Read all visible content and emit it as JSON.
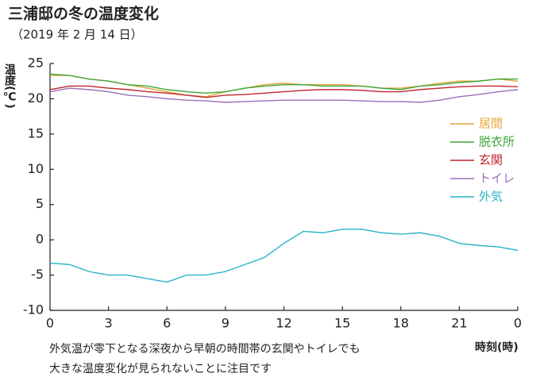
{
  "chart_data": {
    "type": "line",
    "title": "三浦邸の冬の温度変化",
    "subtitle": "（2019 年 2 月 14 日）",
    "y_label": "温度(℃)",
    "x_label": "時刻(時)",
    "annotation": [
      "外気温が零下となる深夜から早朝の時間帯の玄関やトイレでも",
      "大きな温度変化が見られないことに注目です"
    ],
    "x": [
      0,
      1,
      2,
      3,
      4,
      5,
      6,
      7,
      8,
      9,
      10,
      11,
      12,
      13,
      14,
      15,
      16,
      17,
      18,
      19,
      20,
      21,
      22,
      23,
      24
    ],
    "xlim": [
      0,
      24
    ],
    "xticks": [
      0,
      3,
      6,
      9,
      12,
      15,
      18,
      21,
      {
        "value": 24,
        "label": "0"
      }
    ],
    "ylim": [
      -10,
      25
    ],
    "yticks": [
      -10,
      -5,
      0,
      5,
      10,
      15,
      20,
      25
    ],
    "grid": false,
    "legend": "right",
    "series": [
      {
        "name": "居間",
        "color": "#e6a43a",
        "values": [
          23.3,
          23.3,
          22.8,
          22.5,
          22,
          21.5,
          21,
          20.5,
          20.3,
          21,
          21.5,
          22,
          22.2,
          22,
          22,
          22,
          21.8,
          21.5,
          21.5,
          21.8,
          22.2,
          22.5,
          22.5,
          22.8,
          22.5
        ]
      },
      {
        "name": "脱衣所",
        "color": "#3ea63a",
        "values": [
          23.5,
          23.3,
          22.8,
          22.5,
          22,
          21.8,
          21.3,
          21,
          20.8,
          21,
          21.5,
          21.8,
          22,
          22,
          21.8,
          21.8,
          21.8,
          21.5,
          21.3,
          21.8,
          22,
          22.3,
          22.5,
          22.8,
          22.8
        ]
      },
      {
        "name": "玄関",
        "color": "#c0262d",
        "values": [
          21.3,
          21.8,
          21.8,
          21.5,
          21.3,
          21,
          20.8,
          20.5,
          20.2,
          20.5,
          20.6,
          20.8,
          21,
          21.2,
          21.3,
          21.3,
          21.2,
          21,
          21,
          21.3,
          21.5,
          21.7,
          21.8,
          21.8,
          21.7
        ]
      },
      {
        "name": "トイレ",
        "color": "#9b6fb5",
        "values": [
          21,
          21.5,
          21.3,
          21,
          20.5,
          20.3,
          20,
          19.8,
          19.7,
          19.5,
          19.6,
          19.7,
          19.8,
          19.8,
          19.8,
          19.8,
          19.7,
          19.6,
          19.6,
          19.5,
          19.8,
          20.3,
          20.6,
          21,
          21.3
        ]
      },
      {
        "name": "外気",
        "color": "#29b3c9",
        "values": [
          -3.3,
          -3.5,
          -4.5,
          -5,
          -5,
          -5.5,
          -6,
          -5,
          -5,
          -4.5,
          -3.5,
          -2.5,
          -0.5,
          1.2,
          1,
          1.5,
          1.5,
          1,
          0.8,
          1,
          0.5,
          -0.5,
          -0.8,
          -1,
          -1.5
        ]
      }
    ]
  }
}
